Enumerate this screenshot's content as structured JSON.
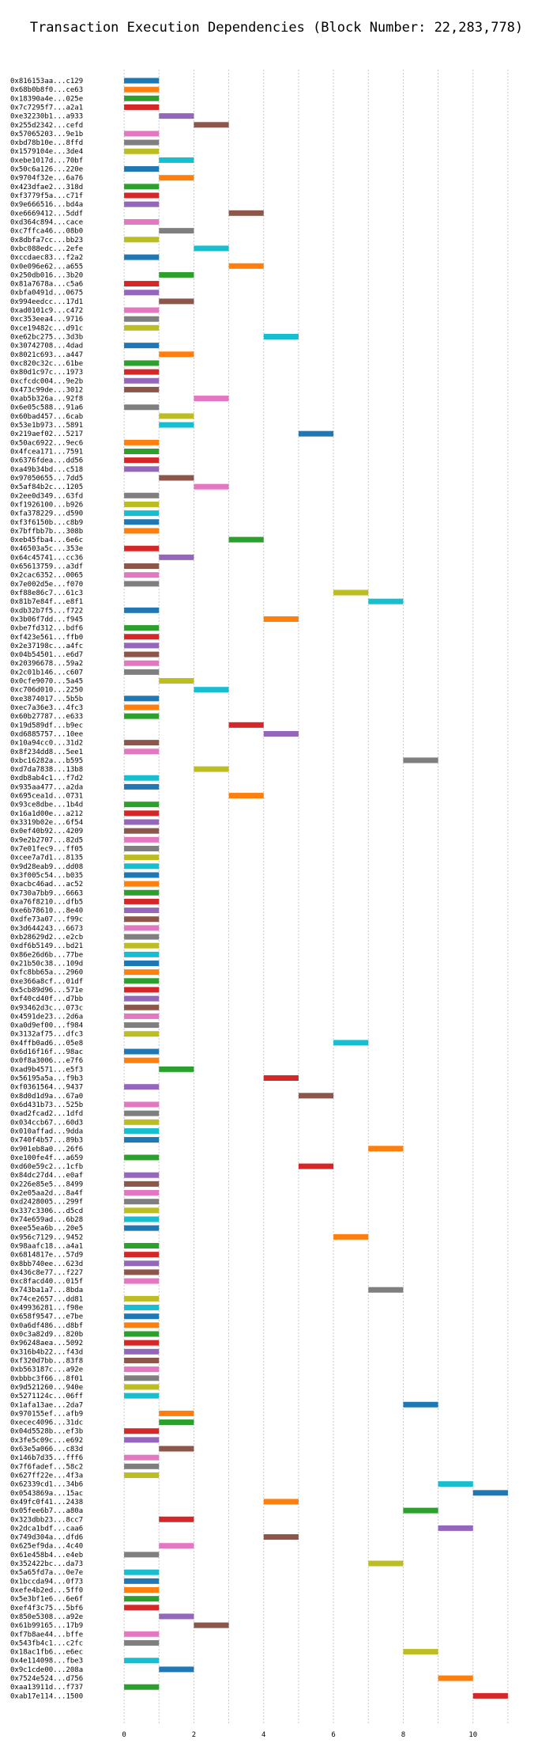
{
  "chart_data": {
    "type": "gantt",
    "title": "Transaction Execution Dependencies (Block Number: 22,283,778)",
    "xlabel": "",
    "ylabel": "",
    "xlim": [
      -0.5,
      11.5
    ],
    "x_ticks": [
      0,
      2,
      4,
      6,
      8,
      10
    ],
    "grid": "vertical dotted lines at every integer",
    "palette": [
      "#1f77b4",
      "#ff7f0e",
      "#2ca02c",
      "#d62728",
      "#9467bd",
      "#8c564b",
      "#e377c2",
      "#7f7f7f",
      "#bcbd22",
      "#17becf"
    ],
    "tasks": [
      {
        "label": "0x816153aa...c129",
        "start": 0
      },
      {
        "label": "0x68b0b8f0...ce63",
        "start": 0
      },
      {
        "label": "0x18390a4e...025e",
        "start": 0
      },
      {
        "label": "0x7c7295f7...a2a1",
        "start": 0
      },
      {
        "label": "0xe32230b1...a933",
        "start": 1
      },
      {
        "label": "0x255d2342...cefd",
        "start": 2
      },
      {
        "label": "0x57065203...9e1b",
        "start": 0
      },
      {
        "label": "0xbd78b10e...8ffd",
        "start": 0
      },
      {
        "label": "0x1579104e...3de4",
        "start": 0
      },
      {
        "label": "0xebe1017d...70bf",
        "start": 1
      },
      {
        "label": "0x50c6a126...220e",
        "start": 0
      },
      {
        "label": "0x9704f32e...6a76",
        "start": 1
      },
      {
        "label": "0x423dfae2...318d",
        "start": 0
      },
      {
        "label": "0xf3779f5a...c71f",
        "start": 0
      },
      {
        "label": "0x9e666516...bd4a",
        "start": 0
      },
      {
        "label": "0xe6669412...5ddf",
        "start": 3
      },
      {
        "label": "0xd364c894...cace",
        "start": 0
      },
      {
        "label": "0xc7ffca46...08b0",
        "start": 1
      },
      {
        "label": "0x8dbfa7cc...bb23",
        "start": 0
      },
      {
        "label": "0xbc088edc...2efe",
        "start": 2
      },
      {
        "label": "0xccdaec83...f2a2",
        "start": 0
      },
      {
        "label": "0x0e096e62...a655",
        "start": 3
      },
      {
        "label": "0x250db016...3b20",
        "start": 1
      },
      {
        "label": "0x81a7678a...c5a6",
        "start": 0
      },
      {
        "label": "0xbfa0491d...0675",
        "start": 0
      },
      {
        "label": "0x994eedcc...17d1",
        "start": 1
      },
      {
        "label": "0xad0101c9...c472",
        "start": 0
      },
      {
        "label": "0xc353eea4...9716",
        "start": 0
      },
      {
        "label": "0xce19482c...d91c",
        "start": 0
      },
      {
        "label": "0xe62bc275...3d3b",
        "start": 4
      },
      {
        "label": "0x30742708...4dad",
        "start": 0
      },
      {
        "label": "0x8021c693...a447",
        "start": 1
      },
      {
        "label": "0xc820c32c...61be",
        "start": 0
      },
      {
        "label": "0x80d1c97c...1973",
        "start": 0
      },
      {
        "label": "0xcfcdc004...9e2b",
        "start": 0
      },
      {
        "label": "0x473c99de...3012",
        "start": 0
      },
      {
        "label": "0xab5b326a...92f8",
        "start": 2
      },
      {
        "label": "0x6e05c588...91a6",
        "start": 0
      },
      {
        "label": "0x60bad457...6cab",
        "start": 1
      },
      {
        "label": "0x53e1b973...5891",
        "start": 1
      },
      {
        "label": "0x219aef02...5217",
        "start": 5
      },
      {
        "label": "0x50ac6922...9ec6",
        "start": 0
      },
      {
        "label": "0x4fcea171...7591",
        "start": 0
      },
      {
        "label": "0x6376fdea...dd56",
        "start": 0
      },
      {
        "label": "0xa49b34bd...c518",
        "start": 0
      },
      {
        "label": "0x97050655...7dd5",
        "start": 1
      },
      {
        "label": "0x5af84b2c...1205",
        "start": 2
      },
      {
        "label": "0x2ee0d349...63fd",
        "start": 0
      },
      {
        "label": "0xf1926100...b926",
        "start": 0
      },
      {
        "label": "0xfa378229...d590",
        "start": 0
      },
      {
        "label": "0xf3f6150b...c8b9",
        "start": 0
      },
      {
        "label": "0x7bffbb7b...308b",
        "start": 0
      },
      {
        "label": "0xeb45fba4...6e6c",
        "start": 3
      },
      {
        "label": "0x46503a5c...353e",
        "start": 0
      },
      {
        "label": "0x64c45741...cc36",
        "start": 1
      },
      {
        "label": "0x65613759...a3df",
        "start": 0
      },
      {
        "label": "0x2cac6352...0065",
        "start": 0
      },
      {
        "label": "0x7e002d5e...f070",
        "start": 0
      },
      {
        "label": "0xf88e86c7...61c3",
        "start": 6
      },
      {
        "label": "0x81b7e84f...e8f1",
        "start": 7
      },
      {
        "label": "0xdb32b7f5...f722",
        "start": 0
      },
      {
        "label": "0x3b06f7dd...f945",
        "start": 4
      },
      {
        "label": "0xbe7fd312...bdf6",
        "start": 0
      },
      {
        "label": "0xf423e561...ffb0",
        "start": 0
      },
      {
        "label": "0x2e37198c...a4fc",
        "start": 0
      },
      {
        "label": "0x04b54501...e6d7",
        "start": 0
      },
      {
        "label": "0x20396678...59a2",
        "start": 0
      },
      {
        "label": "0x2c01b146...c607",
        "start": 0
      },
      {
        "label": "0x0cfe9070...5a45",
        "start": 1
      },
      {
        "label": "0xc706d010...2250",
        "start": 2
      },
      {
        "label": "0xe3874017...5b5b",
        "start": 0
      },
      {
        "label": "0xec7a36e3...4fc3",
        "start": 0
      },
      {
        "label": "0x60b27787...e633",
        "start": 0
      },
      {
        "label": "0x19d589df...b9ec",
        "start": 3
      },
      {
        "label": "0xd6885757...10ee",
        "start": 4
      },
      {
        "label": "0x10a94cc0...31d2",
        "start": 0
      },
      {
        "label": "0x8f234dd8...5ee1",
        "start": 0
      },
      {
        "label": "0xbc16282a...b595",
        "start": 8
      },
      {
        "label": "0xd7da7838...13b8",
        "start": 2
      },
      {
        "label": "0xdb8ab4c1...f7d2",
        "start": 0
      },
      {
        "label": "0x935aa477...a2da",
        "start": 0
      },
      {
        "label": "0x695cea1d...0731",
        "start": 3
      },
      {
        "label": "0x93ce8dbe...1b4d",
        "start": 0
      },
      {
        "label": "0x16a1d00e...a212",
        "start": 0
      },
      {
        "label": "0x3319b02e...6f54",
        "start": 0
      },
      {
        "label": "0x0ef40b92...4209",
        "start": 0
      },
      {
        "label": "0x9e2b2707...82d5",
        "start": 0
      },
      {
        "label": "0x7e01fec9...ff05",
        "start": 0
      },
      {
        "label": "0xcee7a7d1...8135",
        "start": 0
      },
      {
        "label": "0x9d28eab9...dd08",
        "start": 0
      },
      {
        "label": "0x3f005c54...b035",
        "start": 0
      },
      {
        "label": "0xacbc46ad...ac52",
        "start": 0
      },
      {
        "label": "0x730a7bb9...6663",
        "start": 0
      },
      {
        "label": "0xa76f8210...dfb5",
        "start": 0
      },
      {
        "label": "0xe6b78610...8e40",
        "start": 0
      },
      {
        "label": "0xdfe73a07...f99c",
        "start": 0
      },
      {
        "label": "0x3d644243...6673",
        "start": 0
      },
      {
        "label": "0xb28629d2...e2cb",
        "start": 0
      },
      {
        "label": "0xdf6b5149...bd21",
        "start": 0
      },
      {
        "label": "0x86e26d6b...77be",
        "start": 0
      },
      {
        "label": "0x21b50c38...109d",
        "start": 0
      },
      {
        "label": "0xfc8bb65a...2960",
        "start": 0
      },
      {
        "label": "0xe366a8cf...01df",
        "start": 0
      },
      {
        "label": "0x5cb89d96...571e",
        "start": 0
      },
      {
        "label": "0xf40cd40f...d7bb",
        "start": 0
      },
      {
        "label": "0x93462d3c...073c",
        "start": 0
      },
      {
        "label": "0x4591de23...2d6a",
        "start": 0
      },
      {
        "label": "0xa0d9ef00...f984",
        "start": 0
      },
      {
        "label": "0x3132af75...dfc3",
        "start": 0
      },
      {
        "label": "0x4ffb0ad6...05e8",
        "start": 6
      },
      {
        "label": "0x6d16f16f...98ac",
        "start": 0
      },
      {
        "label": "0x0f8a3006...e7f6",
        "start": 0
      },
      {
        "label": "0xad9b4571...e5f3",
        "start": 1
      },
      {
        "label": "0x56195a5a...f9b3",
        "start": 4
      },
      {
        "label": "0xf0361564...9437",
        "start": 0
      },
      {
        "label": "0x8d0d1d9a...67a0",
        "start": 5
      },
      {
        "label": "0x6d431b73...525b",
        "start": 0
      },
      {
        "label": "0xad2fcad2...1dfd",
        "start": 0
      },
      {
        "label": "0x034ccb67...60d3",
        "start": 0
      },
      {
        "label": "0x010affad...9dda",
        "start": 0
      },
      {
        "label": "0x740f4b57...89b3",
        "start": 0
      },
      {
        "label": "0x901eb8a0...26f6",
        "start": 7
      },
      {
        "label": "0xe100fe4f...a659",
        "start": 0
      },
      {
        "label": "0xd60e59c2...1cfb",
        "start": 5
      },
      {
        "label": "0x84dc27d4...e0af",
        "start": 0
      },
      {
        "label": "0x226e85e5...8499",
        "start": 0
      },
      {
        "label": "0x2e05aa2d...8a4f",
        "start": 0
      },
      {
        "label": "0xd2428005...299f",
        "start": 0
      },
      {
        "label": "0x337c3306...d5cd",
        "start": 0
      },
      {
        "label": "0x74e659ad...6b28",
        "start": 0
      },
      {
        "label": "0xee55ea6b...20e5",
        "start": 0
      },
      {
        "label": "0x956c7129...9452",
        "start": 6
      },
      {
        "label": "0x98aafc18...a4a1",
        "start": 0
      },
      {
        "label": "0x6814817e...57d9",
        "start": 0
      },
      {
        "label": "0x8bb740ee...623d",
        "start": 0
      },
      {
        "label": "0x436c8e77...f227",
        "start": 0
      },
      {
        "label": "0xc8facd40...015f",
        "start": 0
      },
      {
        "label": "0x743ba1a7...8bda",
        "start": 7
      },
      {
        "label": "0x74ce2657...dd81",
        "start": 0
      },
      {
        "label": "0x49936281...f98e",
        "start": 0
      },
      {
        "label": "0x658f9547...e7be",
        "start": 0
      },
      {
        "label": "0x0a6df486...d8bf",
        "start": 0
      },
      {
        "label": "0x0c3a82d9...820b",
        "start": 0
      },
      {
        "label": "0x96248aea...5092",
        "start": 0
      },
      {
        "label": "0x316b4b22...f43d",
        "start": 0
      },
      {
        "label": "0xf320d7bb...83f8",
        "start": 0
      },
      {
        "label": "0xb563187c...a92e",
        "start": 0
      },
      {
        "label": "0xbbbc3f66...8f01",
        "start": 0
      },
      {
        "label": "0x9d521260...940e",
        "start": 0
      },
      {
        "label": "0x5271124c...06ff",
        "start": 0
      },
      {
        "label": "0x1afa13ae...2da7",
        "start": 8
      },
      {
        "label": "0x970155ef...afb9",
        "start": 1
      },
      {
        "label": "0xecec4096...31dc",
        "start": 1
      },
      {
        "label": "0x04d5528b...ef3b",
        "start": 0
      },
      {
        "label": "0x3fe5c09c...e692",
        "start": 0
      },
      {
        "label": "0x63e5a066...c83d",
        "start": 1
      },
      {
        "label": "0x146b7d35...fff6",
        "start": 0
      },
      {
        "label": "0x7f6fadef...58c2",
        "start": 0
      },
      {
        "label": "0x627ff22e...4f3a",
        "start": 0
      },
      {
        "label": "0x62339cd1...34b6",
        "start": 9
      },
      {
        "label": "0x0543869a...15ac",
        "start": 10
      },
      {
        "label": "0x49fc0f41...2438",
        "start": 4
      },
      {
        "label": "0x05fee6b7...a80a",
        "start": 8
      },
      {
        "label": "0x323dbb23...8cc7",
        "start": 1
      },
      {
        "label": "0x2dca1bdf...caa6",
        "start": 9
      },
      {
        "label": "0x749d304a...dfd6",
        "start": 4
      },
      {
        "label": "0x625ef9da...4c40",
        "start": 1
      },
      {
        "label": "0x61e458b4...e4eb",
        "start": 0
      },
      {
        "label": "0x352422bc...da73",
        "start": 7
      },
      {
        "label": "0x5a65fd7a...0e7e",
        "start": 0
      },
      {
        "label": "0x1bccda94...0f73",
        "start": 0
      },
      {
        "label": "0xefe4b2ed...5ff0",
        "start": 0
      },
      {
        "label": "0x5e3bf1e6...6e6f",
        "start": 0
      },
      {
        "label": "0xef4f3c75...5bf6",
        "start": 0
      },
      {
        "label": "0x850e5308...a92e",
        "start": 1
      },
      {
        "label": "0x61b99165...17b9",
        "start": 2
      },
      {
        "label": "0xf7b8ae44...bffe",
        "start": 0
      },
      {
        "label": "0x543fb4c1...c2fc",
        "start": 0
      },
      {
        "label": "0x18ac1fb6...e6ec",
        "start": 8
      },
      {
        "label": "0x4e114098...fbe3",
        "start": 0
      },
      {
        "label": "0x9c1cde00...208a",
        "start": 1
      },
      {
        "label": "0x7524e524...d756",
        "start": 9
      },
      {
        "label": "0xaa13911d...f737",
        "start": 0
      },
      {
        "label": "0xab17e114...1500",
        "start": 10
      }
    ]
  }
}
